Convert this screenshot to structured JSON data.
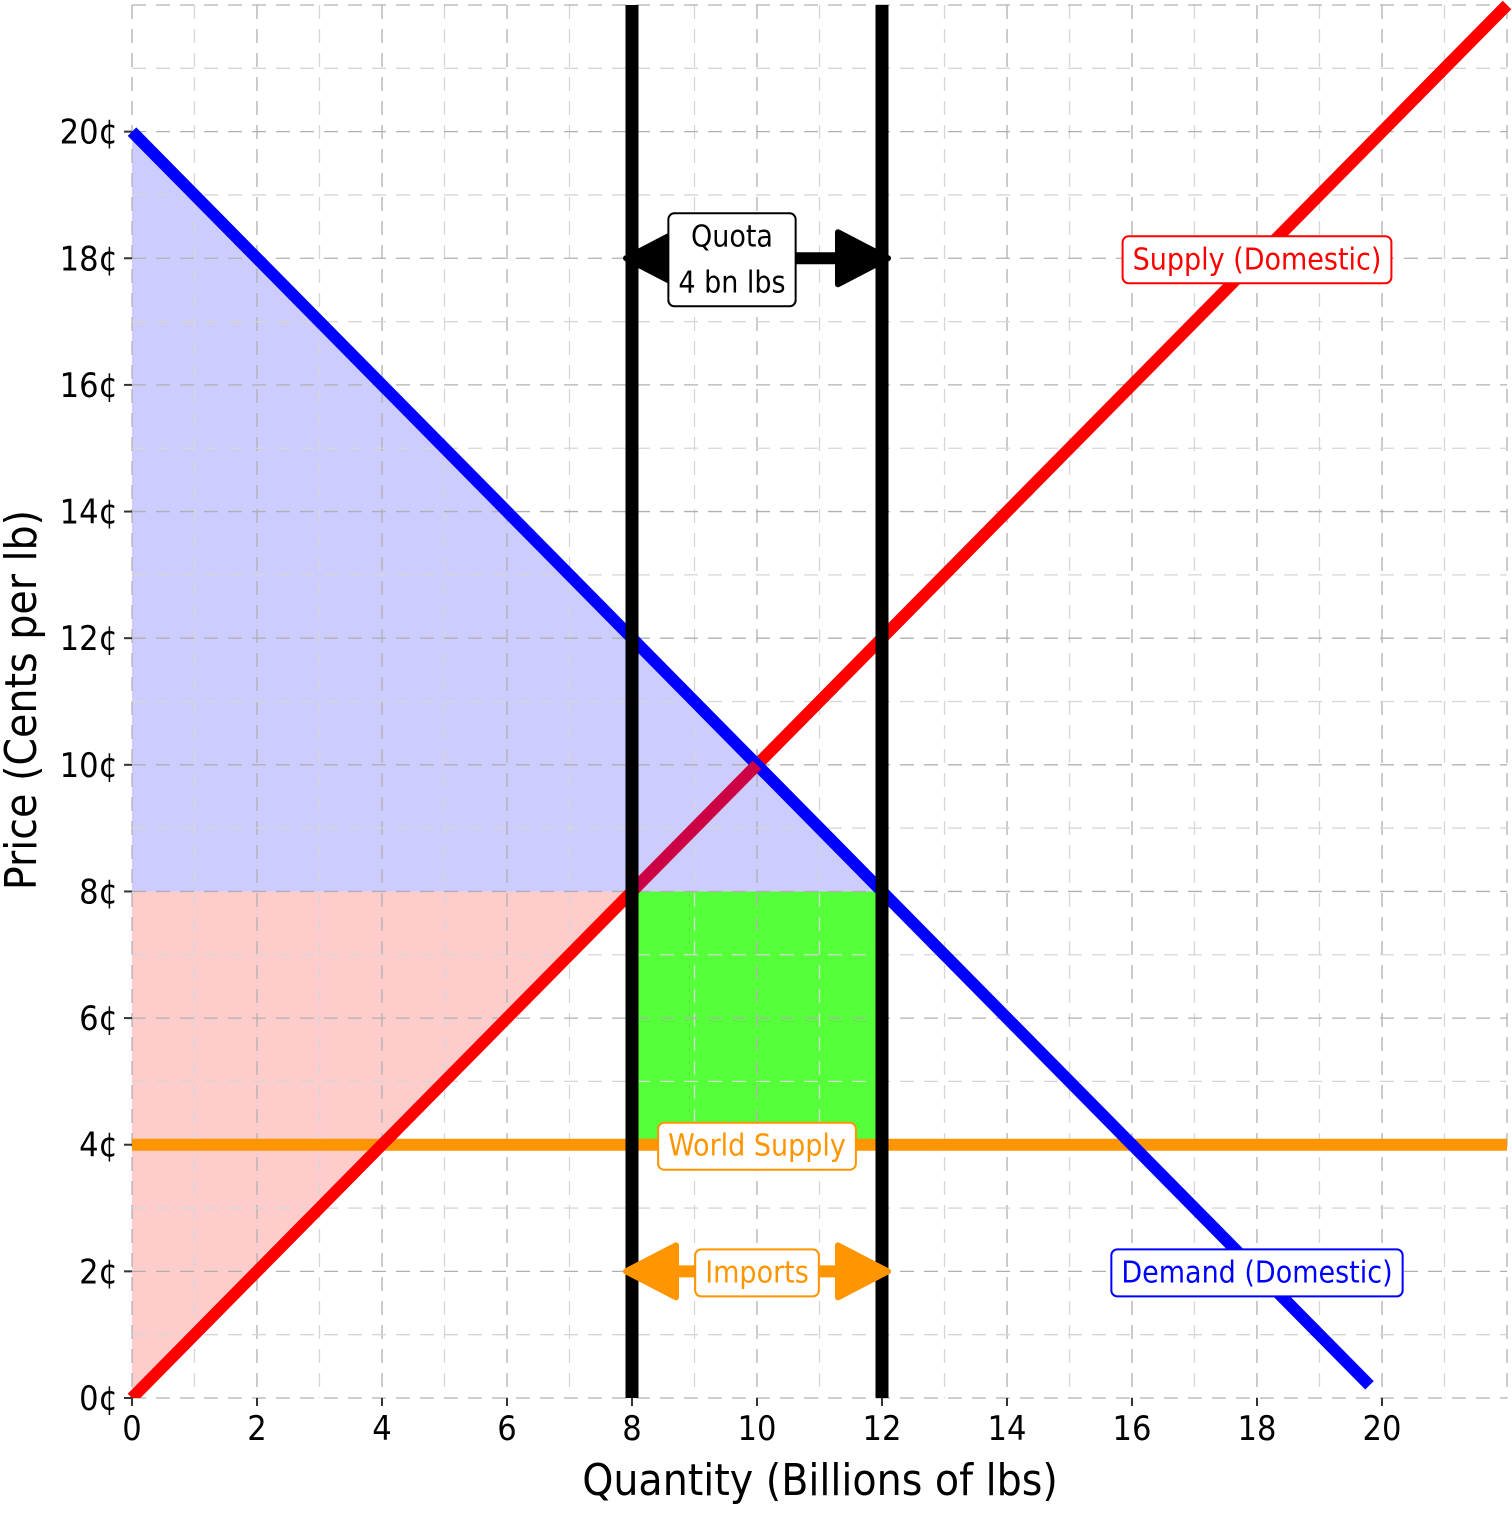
{
  "chart_data": {
    "type": "line",
    "title": "",
    "xlabel": "Quantity (Billions of lbs)",
    "ylabel": "Price (Cents per lb)",
    "xlim": [
      0,
      22
    ],
    "ylim": [
      0,
      22
    ],
    "x_ticks": [
      0,
      2,
      4,
      6,
      8,
      10,
      12,
      14,
      16,
      18,
      20
    ],
    "x_tick_labels": [
      "0",
      "2",
      "4",
      "6",
      "8",
      "10",
      "12",
      "14",
      "16",
      "18",
      "20"
    ],
    "y_ticks": [
      0,
      2,
      4,
      6,
      8,
      10,
      12,
      14,
      16,
      18,
      20
    ],
    "y_tick_labels": [
      "0¢",
      "2¢",
      "4¢",
      "6¢",
      "8¢",
      "10¢",
      "12¢",
      "14¢",
      "16¢",
      "18¢",
      "20¢"
    ],
    "grid": true,
    "series": [
      {
        "name": "Demand (Domestic)",
        "color": "#0000ff",
        "x": [
          0,
          19.8
        ],
        "y": [
          20,
          0.2
        ]
      },
      {
        "name": "Supply (Domestic)",
        "color": "#ff0000",
        "x": [
          0,
          22
        ],
        "y": [
          0,
          22
        ]
      },
      {
        "name": "World Supply",
        "color": "#ff9500",
        "x": [
          0,
          22
        ],
        "y": [
          4,
          4
        ]
      }
    ],
    "quota_lines": {
      "color": "#000000",
      "x": [
        8,
        12
      ]
    },
    "shaded_regions": [
      {
        "id": "consumer-surplus",
        "color": "#ccccff",
        "polygon": [
          [
            0,
            20
          ],
          [
            0,
            8
          ],
          [
            12,
            8
          ],
          [
            8,
            12
          ]
        ]
      },
      {
        "id": "producer-surplus",
        "color": "#ffcccc",
        "polygon": [
          [
            0,
            0
          ],
          [
            0,
            8
          ],
          [
            8,
            8
          ]
        ]
      },
      {
        "id": "quota-rent",
        "color": "#55ff3a",
        "polygon": [
          [
            8,
            4
          ],
          [
            12,
            4
          ],
          [
            12,
            8
          ],
          [
            8,
            8
          ]
        ]
      }
    ],
    "annotations": [
      {
        "id": "quota",
        "lines": [
          "Quota",
          "4 bn lbs"
        ],
        "x": 9.6,
        "y": 18,
        "color": "#000000",
        "arrow": {
          "x_from": 8,
          "x_to": 12,
          "y": 18
        }
      },
      {
        "id": "supply-label",
        "lines": [
          "Supply (Domestic)"
        ],
        "x": 18,
        "y": 18,
        "color": "#ff0000"
      },
      {
        "id": "world-supply-label",
        "lines": [
          "World Supply"
        ],
        "x": 10,
        "y": 4,
        "color": "#ff9500"
      },
      {
        "id": "imports",
        "lines": [
          "Imports"
        ],
        "x": 10,
        "y": 2,
        "color": "#ff9500",
        "arrow": {
          "x_from": 8,
          "x_to": 12,
          "y": 2
        }
      },
      {
        "id": "demand-label",
        "lines": [
          "Demand (Domestic)"
        ],
        "x": 18,
        "y": 2,
        "color": "#0000ff"
      }
    ]
  }
}
